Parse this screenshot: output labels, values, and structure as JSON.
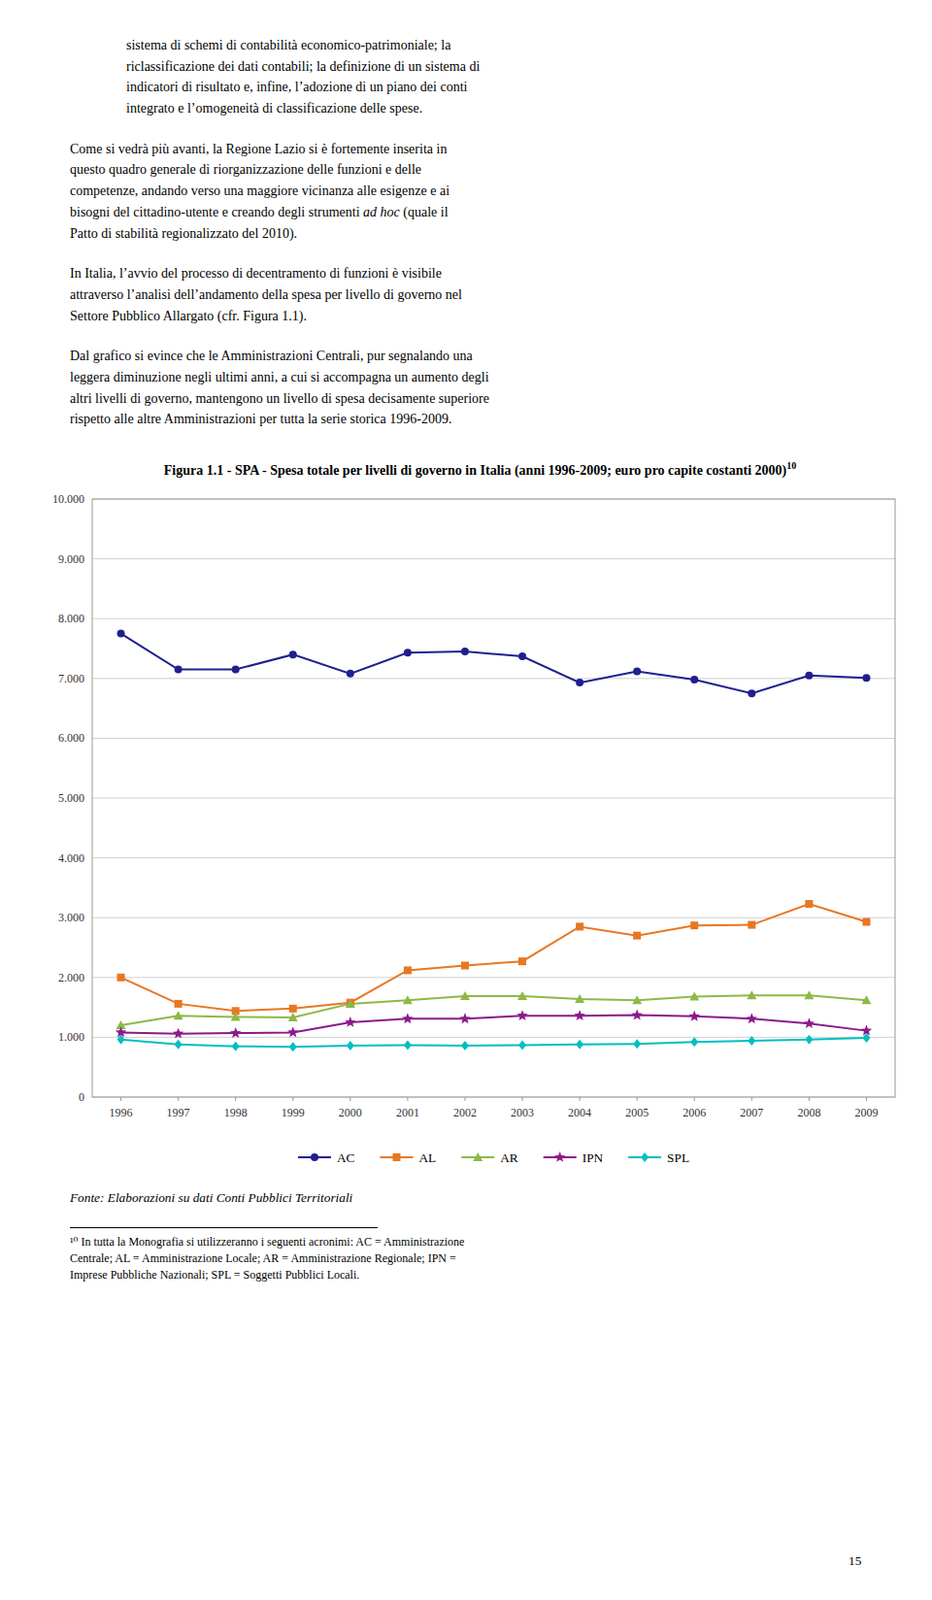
{
  "chart_data": {
    "type": "line",
    "title": "Figura 1.1 -  SPA - Spesa totale per livelli di governo in Italia (anni 1996-2009; euro pro capite costanti 2000)",
    "x": [
      1996,
      1997,
      1998,
      1999,
      2000,
      2001,
      2002,
      2003,
      2004,
      2005,
      2006,
      2007,
      2008,
      2009
    ],
    "xlim": [
      1995.5,
      2009.5
    ],
    "xticks": [
      1996,
      1997,
      1998,
      1999,
      2000,
      2001,
      2002,
      2003,
      2004,
      2005,
      2006,
      2007,
      2008,
      2009
    ],
    "ylim": [
      0,
      10000
    ],
    "yticks": [
      0,
      {
        "value": 1000,
        "label": "1.000"
      },
      {
        "value": 2000,
        "label": "2.000"
      },
      {
        "value": 3000,
        "label": "3.000"
      },
      {
        "value": 4000,
        "label": "4.000"
      },
      {
        "value": 5000,
        "label": "5.000"
      },
      {
        "value": 6000,
        "label": "6.000"
      },
      {
        "value": 7000,
        "label": "7.000"
      },
      {
        "value": 8000,
        "label": "8.000"
      },
      {
        "value": 9000,
        "label": "9.000"
      },
      {
        "value": 10000,
        "label": "10.000"
      }
    ],
    "grid": true,
    "legend": "bottom",
    "series": [
      {
        "name": "AC",
        "color": "#1F1F8F",
        "marker": "circle",
        "values": [
          7750,
          7150,
          7150,
          7400,
          7080,
          7430,
          7450,
          7370,
          6930,
          7120,
          6980,
          6750,
          7050,
          7010
        ]
      },
      {
        "name": "AL",
        "color": "#E87722",
        "marker": "square",
        "values": [
          2000,
          1560,
          1440,
          1480,
          1580,
          2120,
          2200,
          2270,
          2850,
          2700,
          2870,
          2880,
          3230,
          2930
        ]
      },
      {
        "name": "AR",
        "color": "#8DB946",
        "marker": "triangle",
        "values": [
          1200,
          1360,
          1340,
          1330,
          1560,
          1620,
          1690,
          1690,
          1640,
          1620,
          1680,
          1700,
          1700,
          1620
        ]
      },
      {
        "name": "IPN",
        "color": "#8B1A8B",
        "marker": "star",
        "values": [
          1080,
          1060,
          1070,
          1080,
          1250,
          1310,
          1310,
          1360,
          1360,
          1370,
          1350,
          1310,
          1230,
          1110
        ]
      },
      {
        "name": "SPL",
        "color": "#00BFBF",
        "marker": "diamond",
        "values": [
          960,
          880,
          850,
          840,
          860,
          870,
          860,
          870,
          880,
          890,
          920,
          940,
          960,
          990
        ]
      }
    ]
  },
  "page": {
    "paragraphs": [
      [
        {
          "text": "sistema di schemi di contabilità economico-patrimoniale; la\nriclassificazione dei dati contabili; la definizione di un sistema di\nindicatori di risultato e, infine, l’adozione di un piano dei conti\nintegrato e l’omogeneità di classificazione delle spese."
        }
      ],
      [
        {
          "text": "Come si vedrà più avanti, la Regione Lazio si è fortemente inserita in\nquesto quadro generale di riorganizzazione delle funzioni e delle\ncompetenze, andando verso una maggiore vicinanza alle esigenze e ai\nbisogni del cittadino-utente e creando degli strumenti "
        },
        {
          "text": "ad hoc",
          "italic": true
        },
        {
          "text": " (quale il\nPatto di stabilità regionalizzato del 2010)."
        }
      ],
      [
        {
          "text": "In Italia, l’avvio del processo di decentramento di funzioni è visibile\nattraverso l’analisi dell’andamento della spesa per livello di governo nel\nSettore Pubblico Allargato (cfr. Figura 1.1)."
        }
      ],
      [
        {
          "text": "Dal grafico si evince che le Amministrazioni Centrali, pur segnalando una\nleggera diminuzione negli ultimi anni, a cui si accompagna un aumento degli\naltri livelli di governo, mantengono un livello di spesa decisamente superiore\nrispetto alle altre Amministrazioni per tutta la serie storica 1996-2009."
        }
      ]
    ],
    "title_note_mark": "10",
    "source": "Fonte: Elaborazioni su dati Conti Pubblici Territoriali",
    "footnote": "¹⁰ In tutta la Monografia si utilizzeranno i seguenti acronimi: AC = Amministrazione\nCentrale; AL = Amministrazione Locale; AR = Amministrazione Regionale; IPN =\nImprese Pubbliche Nazionali; SPL = Soggetti Pubblici Locali.",
    "page_number": "15"
  }
}
